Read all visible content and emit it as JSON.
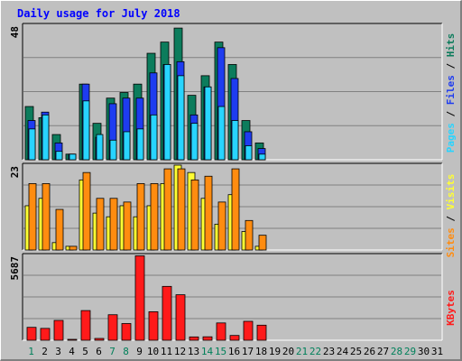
{
  "chart_data": {
    "type": "bar",
    "title": "Daily usage for July 2018",
    "days": [
      "1",
      "2",
      "3",
      "4",
      "5",
      "6",
      "7",
      "8",
      "9",
      "10",
      "11",
      "12",
      "13",
      "14",
      "15",
      "16",
      "17",
      "18",
      "19",
      "20",
      "21",
      "22",
      "23",
      "24",
      "25",
      "26",
      "27",
      "28",
      "29",
      "30",
      "31"
    ],
    "weekend_days": [
      "1",
      "7",
      "8",
      "14",
      "15",
      "21",
      "22",
      "28",
      "29"
    ],
    "panels": [
      {
        "id": "hits",
        "ymax": 48,
        "ymax_label": "48",
        "legend": [
          "Pages",
          "Files",
          "Hits"
        ],
        "series": [
          {
            "name": "Hits",
            "color": "#0c7c5c",
            "values": [
              19,
              15,
              9,
              2,
              27,
              13,
              22,
              24,
              27,
              38,
              42,
              47,
              23,
              30,
              42,
              34,
              14,
              6,
              0,
              0,
              0,
              0,
              0,
              0,
              0,
              0,
              0,
              0,
              0,
              0,
              0
            ]
          },
          {
            "name": "Files",
            "color": "#1e3cf0",
            "values": [
              14,
              17,
              6,
              2,
              27,
              8,
              20,
              22,
              22,
              31,
              34,
              35,
              16,
              26,
              40,
              29,
              10,
              4,
              0,
              0,
              0,
              0,
              0,
              0,
              0,
              0,
              0,
              0,
              0,
              0,
              0
            ]
          },
          {
            "name": "Pages",
            "color": "#28d4ff",
            "values": [
              11,
              16,
              3,
              2,
              21,
              9,
              7,
              10,
              11,
              16,
              34,
              30,
              13,
              26,
              19,
              14,
              5,
              2,
              0,
              0,
              0,
              0,
              0,
              0,
              0,
              0,
              0,
              0,
              0,
              0,
              0
            ]
          }
        ]
      },
      {
        "id": "visits",
        "ymax": 23,
        "ymax_label": "23",
        "legend": [
          "Sites",
          "Visits"
        ],
        "series": [
          {
            "name": "Visits",
            "color": "#ffff33",
            "values": [
              12,
              14,
              2,
              1,
              19,
              10,
              9,
              12,
              9,
              12,
              18,
              23,
              21,
              14,
              7,
              15,
              5,
              1,
              0,
              0,
              0,
              0,
              0,
              0,
              0,
              0,
              0,
              0,
              0,
              0,
              0
            ]
          },
          {
            "name": "Sites",
            "color": "#ff8c10",
            "values": [
              18,
              18,
              11,
              1,
              21,
              14,
              14,
              13,
              18,
              18,
              22,
              22,
              19,
              20,
              13,
              22,
              8,
              4,
              0,
              0,
              0,
              0,
              0,
              0,
              0,
              0,
              0,
              0,
              0,
              0,
              0
            ]
          }
        ]
      },
      {
        "id": "kbytes",
        "ymax": 5687,
        "ymax_label": "5687",
        "legend": [
          "KBytes"
        ],
        "series": [
          {
            "name": "KBytes",
            "color": "#ff1a1a",
            "values": [
              865,
              795,
              1330,
              50,
              1990,
              121,
              1710,
              1120,
              5660,
              1910,
              3610,
              3050,
              223,
              232,
              1160,
              321,
              1270,
              1010,
              0,
              0,
              0,
              0,
              0,
              0,
              0,
              0,
              0,
              0,
              0,
              0,
              0
            ]
          }
        ]
      }
    ]
  },
  "colors": {
    "background": "#c0c0c0",
    "title": "#0000ff",
    "weekday_label": "#000000",
    "weekend_label": "#00805a",
    "gridline": "#808080"
  }
}
